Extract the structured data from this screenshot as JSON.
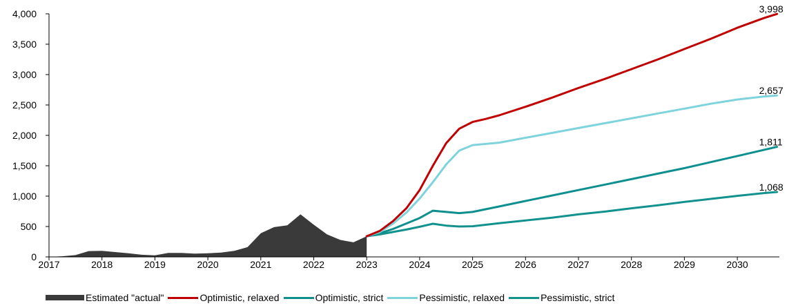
{
  "chart_data": {
    "type": "line",
    "title": "",
    "xlabel": "",
    "ylabel": "",
    "xlim": [
      2017,
      2031.0
    ],
    "ylim": [
      0,
      4000
    ],
    "x_ticks": [
      "2017",
      "2018",
      "2019",
      "2020",
      "2021",
      "2022",
      "2023",
      "2024",
      "2025",
      "2026",
      "2027",
      "2028",
      "2029",
      "2030"
    ],
    "y_ticks": [
      "0",
      "500",
      "1,000",
      "1,500",
      "2,000",
      "2,500",
      "3,000",
      "3,500",
      "4,000"
    ],
    "grid": false,
    "legend_position": "bottom",
    "series": [
      {
        "name": "Estimated \"actual\"",
        "kind": "area",
        "color": "#3a3a3a",
        "x": [
          2017.0,
          2017.25,
          2017.5,
          2017.75,
          2018.0,
          2018.25,
          2018.5,
          2018.75,
          2019.0,
          2019.25,
          2019.5,
          2019.75,
          2020.0,
          2020.25,
          2020.5,
          2020.75,
          2021.0,
          2021.25,
          2021.5,
          2021.75,
          2022.0,
          2022.25,
          2022.5,
          2022.75,
          2023.0
        ],
        "y": [
          0,
          10,
          30,
          95,
          100,
          80,
          60,
          35,
          25,
          65,
          65,
          55,
          60,
          70,
          100,
          160,
          390,
          490,
          520,
          700,
          530,
          370,
          280,
          240,
          340
        ]
      },
      {
        "name": "Optimistic, relaxed",
        "kind": "line",
        "color": "#c00000",
        "x": [
          2023.0,
          2023.25,
          2023.5,
          2023.75,
          2024.0,
          2024.25,
          2024.5,
          2024.75,
          2025.0,
          2025.25,
          2025.5,
          2026.0,
          2026.5,
          2027.0,
          2027.5,
          2028.0,
          2028.5,
          2029.0,
          2029.5,
          2030.0,
          2030.5,
          2030.75
        ],
        "y": [
          340,
          430,
          590,
          800,
          1100,
          1500,
          1870,
          2110,
          2220,
          2270,
          2330,
          2470,
          2620,
          2780,
          2930,
          3090,
          3250,
          3420,
          3590,
          3770,
          3930,
          3998
        ],
        "end_label": "3,998"
      },
      {
        "name": "Optimistic, strict",
        "kind": "line",
        "color": "#0e8f8f",
        "x": [
          2023.0,
          2023.25,
          2023.5,
          2023.75,
          2024.0,
          2024.25,
          2024.5,
          2024.75,
          2025.0,
          2025.5,
          2026.0,
          2026.5,
          2027.0,
          2027.5,
          2028.0,
          2028.5,
          2029.0,
          2029.5,
          2030.0,
          2030.5,
          2030.75
        ],
        "y": [
          340,
          390,
          460,
          550,
          640,
          760,
          740,
          720,
          740,
          830,
          920,
          1010,
          1100,
          1190,
          1280,
          1370,
          1460,
          1560,
          1660,
          1760,
          1811
        ],
        "end_label": "1,811"
      },
      {
        "name": "Pessimistic, relaxed",
        "kind": "line",
        "color": "#7fd3dc",
        "x": [
          2023.0,
          2023.25,
          2023.5,
          2023.75,
          2024.0,
          2024.25,
          2024.5,
          2024.75,
          2025.0,
          2025.5,
          2026.0,
          2026.5,
          2027.0,
          2027.5,
          2028.0,
          2028.5,
          2029.0,
          2029.5,
          2030.0,
          2030.5,
          2030.75
        ],
        "y": [
          340,
          410,
          550,
          730,
          960,
          1230,
          1520,
          1750,
          1840,
          1880,
          1960,
          2040,
          2120,
          2200,
          2280,
          2360,
          2440,
          2520,
          2590,
          2640,
          2657
        ],
        "end_label": "2,657"
      },
      {
        "name": "Pessimistic, strict",
        "kind": "line",
        "color": "#11928f",
        "x": [
          2023.0,
          2023.25,
          2023.5,
          2023.75,
          2024.0,
          2024.25,
          2024.5,
          2024.75,
          2025.0,
          2025.5,
          2026.0,
          2026.5,
          2027.0,
          2027.5,
          2028.0,
          2028.5,
          2029.0,
          2029.5,
          2030.0,
          2030.5,
          2030.75
        ],
        "y": [
          340,
          370,
          410,
          450,
          495,
          545,
          515,
          500,
          505,
          555,
          600,
          645,
          700,
          745,
          800,
          850,
          905,
          955,
          1005,
          1050,
          1068
        ],
        "end_label": "1,068"
      }
    ]
  }
}
